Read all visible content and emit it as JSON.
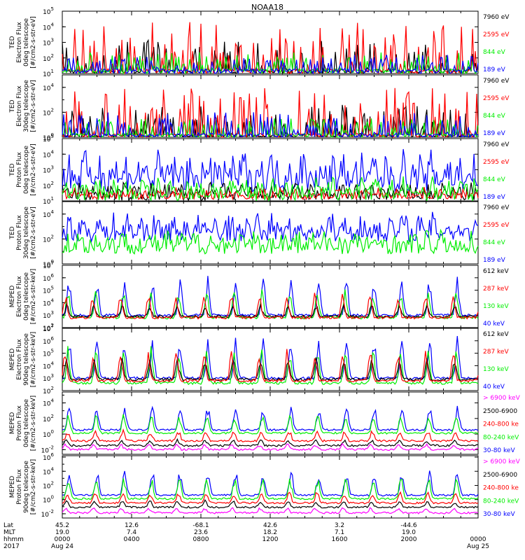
{
  "title": "NOAA18",
  "colors": {
    "black": "#000000",
    "red": "#ff0000",
    "green": "#00ee00",
    "blue": "#0000ff",
    "magenta": "#ff00ff"
  },
  "x_axis": {
    "row_labels": [
      "Lat",
      "MLT",
      "hhmm",
      "2017"
    ],
    "columns": [
      {
        "lat": "45.2",
        "mlt": "19.0",
        "hhmm": "0000",
        "date": "Aug 24"
      },
      {
        "lat": "12.6",
        "mlt": "7.4",
        "hhmm": "0400",
        "date": ""
      },
      {
        "lat": "-68.1",
        "mlt": "23.6",
        "hhmm": "0800",
        "date": ""
      },
      {
        "lat": "42.6",
        "mlt": "18.2",
        "hhmm": "1200",
        "date": ""
      },
      {
        "lat": "3.2",
        "mlt": "7.1",
        "hhmm": "1600",
        "date": ""
      },
      {
        "lat": "-44.6",
        "mlt": "19.0",
        "hhmm": "2000",
        "date": ""
      },
      {
        "lat": "",
        "mlt": "",
        "hhmm": "0000",
        "date": "Aug 25"
      }
    ]
  },
  "chart_data": [
    {
      "type": "line",
      "ylabel": [
        "TED",
        "Electron Flux",
        "0deg telescope",
        "[#/cm2-s-str-eV]"
      ],
      "y_exponents": [
        1,
        2,
        3,
        4,
        5
      ],
      "y_ticks": [
        {
          "value": 1,
          "label": "10",
          "exp": "1"
        },
        {
          "value": 2,
          "label": "10",
          "exp": "2"
        },
        {
          "value": 3,
          "label": "10",
          "exp": "3"
        },
        {
          "value": 4,
          "label": "10",
          "exp": "4"
        },
        {
          "value": 5,
          "label": "10",
          "exp": "5"
        }
      ],
      "ylim": [
        1,
        5
      ],
      "y_scale": "log",
      "x_range_hours": [
        0,
        24
      ],
      "legend": [
        {
          "name": "7960 eV",
          "color": "#000000"
        },
        {
          "name": "2595 eV",
          "color": "#ff0000"
        },
        {
          "name": "844 eV",
          "color": "#00ee00"
        },
        {
          "name": "189 eV",
          "color": "#0000ff"
        }
      ],
      "series": [
        {
          "name": "7960 eV",
          "color": "#000000",
          "baseline": 1.0,
          "amplitude": 2.2,
          "style": "spikes"
        },
        {
          "name": "2595 eV",
          "color": "#ff0000",
          "baseline": 1.0,
          "amplitude": 3.4,
          "style": "spikes"
        },
        {
          "name": "844 eV",
          "color": "#00ee00",
          "baseline": 1.0,
          "amplitude": 1.4,
          "style": "spikes"
        },
        {
          "name": "189 eV",
          "color": "#0000ff",
          "baseline": 1.0,
          "amplitude": 1.2,
          "style": "spikes"
        }
      ]
    },
    {
      "type": "line",
      "ylabel": [
        "TED",
        "Electron Flux",
        "30deg telescope",
        "[#/cm2-s-str-eV]"
      ],
      "y_exponents": [
        0,
        2,
        4
      ],
      "y_ticks": [
        {
          "value": 0,
          "label": "10",
          "exp": "0"
        },
        {
          "value": 2,
          "label": "10",
          "exp": "2"
        },
        {
          "value": 4,
          "label": "10",
          "exp": "4"
        }
      ],
      "ylim": [
        0,
        5
      ],
      "y_scale": "log",
      "x_range_hours": [
        0,
        24
      ],
      "legend": [
        {
          "name": "7960 eV",
          "color": "#000000"
        },
        {
          "name": "2595 eV",
          "color": "#ff0000"
        },
        {
          "name": "844 eV",
          "color": "#00ee00"
        },
        {
          "name": "189 eV",
          "color": "#0000ff"
        }
      ],
      "series": [
        {
          "name": "7960 eV",
          "color": "#000000",
          "baseline": 0.0,
          "amplitude": 2.6,
          "style": "spikes"
        },
        {
          "name": "2595 eV",
          "color": "#ff0000",
          "baseline": 0.0,
          "amplitude": 4.0,
          "style": "spikes"
        },
        {
          "name": "844 eV",
          "color": "#00ee00",
          "baseline": 0.0,
          "amplitude": 1.5,
          "style": "spikes"
        },
        {
          "name": "189 eV",
          "color": "#0000ff",
          "baseline": 0.0,
          "amplitude": 2.0,
          "style": "spikes"
        }
      ]
    },
    {
      "type": "line",
      "ylabel": [
        "TED",
        "Proton Flux",
        "0deg telescope",
        "[#/cm2-s-str-eV]"
      ],
      "y_exponents": [
        1,
        2,
        3,
        4,
        5
      ],
      "y_ticks": [
        {
          "value": 1,
          "label": "10",
          "exp": "1"
        },
        {
          "value": 2,
          "label": "10",
          "exp": "2"
        },
        {
          "value": 3,
          "label": "10",
          "exp": "3"
        },
        {
          "value": 4,
          "label": "10",
          "exp": "4"
        },
        {
          "value": 5,
          "label": "10",
          "exp": "5"
        }
      ],
      "ylim": [
        1,
        5
      ],
      "y_scale": "log",
      "x_range_hours": [
        0,
        24
      ],
      "legend": [
        {
          "name": "7960 eV",
          "color": "#000000"
        },
        {
          "name": "2595 eV",
          "color": "#ff0000"
        },
        {
          "name": "844 eV",
          "color": "#00ee00"
        },
        {
          "name": "189 eV",
          "color": "#0000ff"
        }
      ],
      "series": [
        {
          "name": "189 eV",
          "color": "#0000ff",
          "baseline": 1.6,
          "amplitude": 2.8,
          "style": "noise"
        },
        {
          "name": "7960 eV",
          "color": "#000000",
          "baseline": 1.0,
          "amplitude": 1.2,
          "style": "noise"
        },
        {
          "name": "2595 eV",
          "color": "#ff0000",
          "baseline": 1.1,
          "amplitude": 0.8,
          "style": "noise"
        },
        {
          "name": "844 eV",
          "color": "#00ee00",
          "baseline": 1.0,
          "amplitude": 1.6,
          "style": "noise"
        }
      ]
    },
    {
      "type": "line",
      "ylabel": [
        "TED",
        "Proton Flux",
        "30deg telescope",
        "[#/cm2-s-str-eV]"
      ],
      "y_exponents": [
        0,
        2,
        4
      ],
      "y_ticks": [
        {
          "value": 0,
          "label": "10",
          "exp": "0"
        },
        {
          "value": 2,
          "label": "10",
          "exp": "2"
        },
        {
          "value": 4,
          "label": "10",
          "exp": "4"
        }
      ],
      "ylim": [
        0,
        5
      ],
      "y_scale": "log",
      "x_range_hours": [
        0,
        24
      ],
      "legend": [
        {
          "name": "7960 eV",
          "color": "#000000"
        },
        {
          "name": "2595 eV",
          "color": "#ff0000"
        },
        {
          "name": "844 eV",
          "color": "#00ee00"
        },
        {
          "name": "189 eV",
          "color": "#0000ff"
        }
      ],
      "series": [
        {
          "name": "189 eV",
          "color": "#0000ff",
          "baseline": 1.8,
          "amplitude": 2.4,
          "style": "noise"
        },
        {
          "name": "844 eV",
          "color": "#00ee00",
          "baseline": 0.8,
          "amplitude": 2.0,
          "style": "noise"
        }
      ]
    },
    {
      "type": "line",
      "ylabel": [
        "MEPED",
        "Electron Flux",
        "0deg telescope",
        "[#/cm2-s-str-keV]"
      ],
      "y_exponents": [
        2,
        3,
        4,
        5,
        6,
        7
      ],
      "y_ticks": [
        {
          "value": 2,
          "label": "10",
          "exp": "2"
        },
        {
          "value": 3,
          "label": "10",
          "exp": "3"
        },
        {
          "value": 4,
          "label": "10",
          "exp": "4"
        },
        {
          "value": 5,
          "label": "10",
          "exp": "5"
        },
        {
          "value": 6,
          "label": "10",
          "exp": "6"
        },
        {
          "value": 7,
          "label": "10",
          "exp": "7"
        }
      ],
      "ylim": [
        2,
        7
      ],
      "y_scale": "log",
      "x_range_hours": [
        0,
        24
      ],
      "legend": [
        {
          "name": "612 keV",
          "color": "#000000"
        },
        {
          "name": "287 keV",
          "color": "#ff0000"
        },
        {
          "name": "130 keV",
          "color": "#00ee00"
        },
        {
          "name": "40 keV",
          "color": "#0000ff"
        }
      ],
      "series": [
        {
          "name": "40 keV",
          "color": "#0000ff",
          "baseline": 2.9,
          "amplitude": 3.2,
          "style": "peaks"
        },
        {
          "name": "130 keV",
          "color": "#00ee00",
          "baseline": 2.7,
          "amplitude": 2.4,
          "style": "peaks"
        },
        {
          "name": "612 keV",
          "color": "#000000",
          "baseline": 2.8,
          "amplitude": 1.0,
          "style": "peaks"
        },
        {
          "name": "287 keV",
          "color": "#ff0000",
          "baseline": 2.7,
          "amplitude": 2.0,
          "style": "peaks"
        }
      ]
    },
    {
      "type": "line",
      "ylabel": [
        "MEPED",
        "Electron Flux",
        "90deg telescope",
        "[#/cm2-s-str-keV]"
      ],
      "y_exponents": [
        2,
        3,
        4,
        5,
        6,
        7
      ],
      "y_ticks": [
        {
          "value": 2,
          "label": "10",
          "exp": "2"
        },
        {
          "value": 3,
          "label": "10",
          "exp": "3"
        },
        {
          "value": 4,
          "label": "10",
          "exp": "4"
        },
        {
          "value": 5,
          "label": "10",
          "exp": "5"
        },
        {
          "value": 6,
          "label": "10",
          "exp": "6"
        },
        {
          "value": 7,
          "label": "10",
          "exp": "7"
        }
      ],
      "ylim": [
        2,
        7
      ],
      "y_scale": "log",
      "x_range_hours": [
        0,
        24
      ],
      "legend": [
        {
          "name": "612 keV",
          "color": "#000000"
        },
        {
          "name": "287 keV",
          "color": "#ff0000"
        },
        {
          "name": "130 keV",
          "color": "#00ee00"
        },
        {
          "name": "40 keV",
          "color": "#0000ff"
        }
      ],
      "series": [
        {
          "name": "40 keV",
          "color": "#0000ff",
          "baseline": 2.9,
          "amplitude": 3.4,
          "style": "peaks"
        },
        {
          "name": "130 keV",
          "color": "#00ee00",
          "baseline": 2.5,
          "amplitude": 3.0,
          "style": "peaks"
        },
        {
          "name": "612 keV",
          "color": "#000000",
          "baseline": 2.8,
          "amplitude": 1.8,
          "style": "peaks"
        },
        {
          "name": "287 keV",
          "color": "#ff0000",
          "baseline": 2.7,
          "amplitude": 2.6,
          "style": "peaks"
        }
      ]
    },
    {
      "type": "line",
      "ylabel": [
        "MEPED",
        "Proton Flux",
        "0deg telescope",
        "[#/cm2-s-str-keV]"
      ],
      "y_exponents": [
        -2,
        0,
        2,
        4
      ],
      "y_ticks": [
        {
          "value": -2,
          "label": "10",
          "exp": "-2"
        },
        {
          "value": 0,
          "label": "10",
          "exp": "0"
        },
        {
          "value": 2,
          "label": "10",
          "exp": "2"
        },
        {
          "value": 4,
          "label": "10",
          "exp": "4"
        }
      ],
      "ylim": [
        -2.6,
        5.4
      ],
      "y_scale": "log",
      "x_range_hours": [
        0,
        24
      ],
      "legend": [
        {
          "name": "> 6900 keV",
          "color": "#ff00ff"
        },
        {
          "name": "2500-6900",
          "color": "#000000"
        },
        {
          "name": "240-800 ke",
          "color": "#ff0000"
        },
        {
          "name": "80-240 keV",
          "color": "#00ee00"
        },
        {
          "name": "30-80 keV",
          "color": "#0000ff"
        }
      ],
      "series": [
        {
          "name": "30-80 keV",
          "color": "#0000ff",
          "baseline": 0.4,
          "amplitude": 3.2,
          "style": "proton"
        },
        {
          "name": "80-240 keV",
          "color": "#00ee00",
          "baseline": 0.0,
          "amplitude": 2.4,
          "style": "proton"
        },
        {
          "name": "240-800 ke",
          "color": "#ff0000",
          "baseline": -1.0,
          "amplitude": 1.4,
          "style": "proton"
        },
        {
          "name": "2500-6900",
          "color": "#000000",
          "baseline": -1.6,
          "amplitude": 0.8,
          "style": "proton"
        },
        {
          "name": "> 6900 keV",
          "color": "#ff00ff",
          "baseline": -2.1,
          "amplitude": 0.7,
          "style": "proton"
        }
      ]
    },
    {
      "type": "line",
      "ylabel": [
        "MEPED",
        "Proton Flux",
        "90deg telescope",
        "[#/cm2-s-str-keV]"
      ],
      "y_exponents": [
        -2,
        0,
        2,
        4,
        6
      ],
      "y_ticks": [
        {
          "value": -2,
          "label": "10",
          "exp": "-2"
        },
        {
          "value": 0,
          "label": "10",
          "exp": "0"
        },
        {
          "value": 2,
          "label": "10",
          "exp": "2"
        },
        {
          "value": 4,
          "label": "10",
          "exp": "4"
        },
        {
          "value": 6,
          "label": "10",
          "exp": "6"
        }
      ],
      "ylim": [
        -2.6,
        6.2
      ],
      "y_scale": "log",
      "x_range_hours": [
        0,
        24
      ],
      "legend": [
        {
          "name": "> 6900 keV",
          "color": "#ff00ff"
        },
        {
          "name": "2500-6900",
          "color": "#000000"
        },
        {
          "name": "240-800 ke",
          "color": "#ff0000"
        },
        {
          "name": "80-240 keV",
          "color": "#00ee00"
        },
        {
          "name": "30-80 keV",
          "color": "#0000ff"
        }
      ],
      "series": [
        {
          "name": "30-80 keV",
          "color": "#0000ff",
          "baseline": 0.5,
          "amplitude": 3.6,
          "style": "proton"
        },
        {
          "name": "80-240 keV",
          "color": "#00ee00",
          "baseline": 0.0,
          "amplitude": 3.0,
          "style": "proton"
        },
        {
          "name": "240-800 ke",
          "color": "#ff0000",
          "baseline": -0.6,
          "amplitude": 1.6,
          "style": "proton"
        },
        {
          "name": "2500-6900",
          "color": "#000000",
          "baseline": -1.2,
          "amplitude": 1.0,
          "style": "proton"
        },
        {
          "name": "> 6900 keV",
          "color": "#ff00ff",
          "baseline": -2.0,
          "amplitude": 0.8,
          "style": "proton"
        }
      ]
    }
  ]
}
